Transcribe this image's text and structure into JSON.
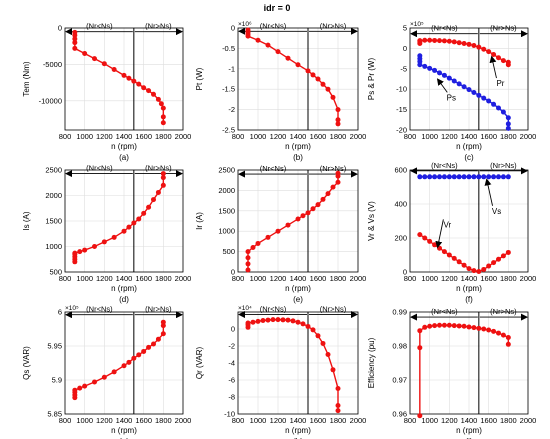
{
  "figure_title": "idr = 0",
  "region_labels": {
    "left": "(Nr<Ns)",
    "right": "(Nr>Ns)"
  },
  "colors": {
    "red": "#ee1111",
    "blue": "#1f1fe0",
    "axis": "#000000",
    "grid": "#dedede"
  },
  "chart_data": [
    {
      "type": "line",
      "panel": "(a)",
      "xlabel": "n (rpm)",
      "ylabel": "Tem (Nm)",
      "xlim": [
        800,
        2000
      ],
      "ylim": [
        -14000,
        0
      ],
      "xticks": [
        800,
        1000,
        1200,
        1400,
        1600,
        1800,
        2000
      ],
      "yticks": [
        0,
        -5000,
        -10000
      ],
      "exponent": "",
      "region_y": -500,
      "series": [
        {
          "color": "#ee1111",
          "x": [
            900,
            900,
            900,
            900,
            900,
            1000,
            1100,
            1200,
            1300,
            1400,
            1450,
            1500,
            1550,
            1600,
            1650,
            1700,
            1750,
            1780,
            1800,
            1800,
            1800
          ],
          "y": [
            -600,
            -1000,
            -1500,
            -2000,
            -2800,
            -3500,
            -4200,
            -4900,
            -5700,
            -6500,
            -6900,
            -7300,
            -7700,
            -8200,
            -8600,
            -9100,
            -9800,
            -10400,
            -11000,
            -12200,
            -13000
          ]
        }
      ],
      "annotations": []
    },
    {
      "type": "line",
      "panel": "(b)",
      "xlabel": "n (rpm)",
      "ylabel": "Pt (W)",
      "xlim": [
        800,
        2000
      ],
      "ylim": [
        -2.5,
        0
      ],
      "xticks": [
        800,
        1000,
        1200,
        1400,
        1600,
        1800,
        2000
      ],
      "yticks": [
        0,
        -0.5,
        -1,
        -1.5,
        -2,
        -2.5
      ],
      "exponent": "×10⁶",
      "region_y": -0.08,
      "series": [
        {
          "color": "#ee1111",
          "x": [
            900,
            900,
            900,
            900,
            1000,
            1100,
            1200,
            1300,
            1400,
            1500,
            1550,
            1600,
            1650,
            1700,
            1750,
            1800,
            1800,
            1800
          ],
          "y": [
            -0.05,
            -0.1,
            -0.15,
            -0.2,
            -0.3,
            -0.42,
            -0.58,
            -0.74,
            -0.9,
            -1.05,
            -1.15,
            -1.25,
            -1.38,
            -1.5,
            -1.7,
            -2.0,
            -2.25,
            -2.35
          ]
        }
      ],
      "annotations": []
    },
    {
      "type": "line",
      "panel": "(c)",
      "xlabel": "n (rpm)",
      "ylabel": "Ps & Pr (W)",
      "xlim": [
        800,
        2000
      ],
      "ylim": [
        -20,
        5
      ],
      "xticks": [
        800,
        1000,
        1200,
        1400,
        1600,
        1800,
        2000
      ],
      "yticks": [
        5,
        0,
        -5,
        -10,
        -15,
        -20
      ],
      "exponent": "×10⁵",
      "region_y": 3.6,
      "series": [
        {
          "name": "Pr",
          "color": "#ee1111",
          "x": [
            900,
            900,
            900,
            950,
            1000,
            1050,
            1100,
            1150,
            1200,
            1250,
            1300,
            1350,
            1400,
            1450,
            1500,
            1550,
            1600,
            1650,
            1700,
            1750,
            1800,
            1800
          ],
          "y": [
            1.2,
            1.6,
            1.9,
            2.0,
            2.0,
            1.95,
            1.9,
            1.85,
            1.75,
            1.6,
            1.4,
            1.2,
            1.0,
            0.7,
            0.3,
            -0.2,
            -0.8,
            -1.5,
            -2.3,
            -3.0,
            -3.4,
            -4.0
          ]
        },
        {
          "name": "Ps",
          "color": "#1f1fe0",
          "x": [
            900,
            900,
            900,
            900,
            950,
            1000,
            1050,
            1100,
            1150,
            1200,
            1250,
            1300,
            1350,
            1400,
            1450,
            1500,
            1550,
            1600,
            1650,
            1700,
            1750,
            1800,
            1800,
            1800
          ],
          "y": [
            -1.8,
            -2.5,
            -3.2,
            -4.0,
            -4.4,
            -4.9,
            -5.4,
            -6.0,
            -6.6,
            -7.3,
            -8.0,
            -8.7,
            -9.4,
            -10.1,
            -10.8,
            -11.5,
            -12.2,
            -12.9,
            -13.7,
            -14.6,
            -15.6,
            -17.0,
            -18.5,
            -19.6
          ]
        }
      ],
      "annotations": [
        {
          "text": "Ps",
          "tx": 1220,
          "ty": -12,
          "ax": 1080,
          "ay": -7.5
        },
        {
          "text": "Pr",
          "tx": 1720,
          "ty": -8.5,
          "ax": 1630,
          "ay": -2.0
        }
      ]
    },
    {
      "type": "line",
      "panel": "(d)",
      "xlabel": "n (rpm)",
      "ylabel": "Is (A)",
      "xlim": [
        800,
        2000
      ],
      "ylim": [
        500,
        2500
      ],
      "xticks": [
        800,
        1000,
        1200,
        1400,
        1600,
        1800,
        2000
      ],
      "yticks": [
        500,
        1000,
        1500,
        2000,
        2500
      ],
      "exponent": "",
      "region_y": 2430,
      "series": [
        {
          "color": "#ee1111",
          "x": [
            900,
            900,
            900,
            900,
            900,
            950,
            1000,
            1100,
            1200,
            1300,
            1400,
            1450,
            1500,
            1550,
            1600,
            1650,
            1700,
            1750,
            1800,
            1800,
            1800
          ],
          "y": [
            700,
            750,
            800,
            850,
            870,
            900,
            930,
            1000,
            1090,
            1180,
            1300,
            1380,
            1460,
            1540,
            1650,
            1770,
            1920,
            2060,
            2200,
            2350,
            2430
          ]
        }
      ],
      "annotations": []
    },
    {
      "type": "line",
      "panel": "(e)",
      "xlabel": "n (rpm)",
      "ylabel": "Ir (A)",
      "xlim": [
        800,
        2000
      ],
      "ylim": [
        0,
        2500
      ],
      "xticks": [
        800,
        1000,
        1200,
        1400,
        1600,
        1800,
        2000
      ],
      "yticks": [
        0,
        500,
        1000,
        1500,
        2000,
        2500
      ],
      "exponent": "",
      "region_y": 2400,
      "series": [
        {
          "color": "#ee1111",
          "x": [
            900,
            900,
            900,
            900,
            950,
            1000,
            1100,
            1200,
            1300,
            1400,
            1450,
            1500,
            1550,
            1600,
            1650,
            1700,
            1750,
            1800,
            1800,
            1800
          ],
          "y": [
            50,
            200,
            350,
            500,
            600,
            700,
            850,
            1000,
            1150,
            1300,
            1380,
            1450,
            1550,
            1650,
            1780,
            1920,
            2080,
            2200,
            2350,
            2420
          ]
        }
      ],
      "annotations": []
    },
    {
      "type": "line",
      "panel": "(f)",
      "xlabel": "n (rpm)",
      "ylabel": "Vr & Vs (V)",
      "xlim": [
        800,
        2000
      ],
      "ylim": [
        0,
        600
      ],
      "xticks": [
        800,
        1000,
        1200,
        1400,
        1600,
        1800,
        2000
      ],
      "yticks": [
        0,
        200,
        400,
        600
      ],
      "exponent": "",
      "region_y": 595,
      "series": [
        {
          "name": "Vs",
          "color": "#1f1fe0",
          "x": [
            900,
            950,
            1000,
            1050,
            1100,
            1150,
            1200,
            1250,
            1300,
            1350,
            1400,
            1450,
            1500,
            1550,
            1600,
            1650,
            1700,
            1750,
            1800
          ],
          "y": [
            560,
            560,
            560,
            560,
            560,
            560,
            560,
            560,
            560,
            560,
            560,
            560,
            560,
            560,
            560,
            560,
            560,
            560,
            560
          ]
        },
        {
          "name": "Vr",
          "color": "#ee1111",
          "x": [
            900,
            950,
            1000,
            1050,
            1100,
            1150,
            1200,
            1250,
            1300,
            1350,
            1400,
            1450,
            1500,
            1550,
            1600,
            1650,
            1700,
            1750,
            1800
          ],
          "y": [
            220,
            200,
            180,
            160,
            140,
            120,
            100,
            80,
            60,
            40,
            20,
            8,
            3,
            15,
            35,
            55,
            75,
            95,
            115
          ]
        }
      ],
      "annotations": [
        {
          "text": "Vr",
          "tx": 1180,
          "ty": 280,
          "ax": 1080,
          "ay": 145
        },
        {
          "text": "Vs",
          "tx": 1680,
          "ty": 360,
          "ax": 1580,
          "ay": 545
        }
      ]
    },
    {
      "type": "line",
      "panel": "(g)",
      "xlabel": "n (rpm)",
      "ylabel": "Qs (VAR)",
      "xlim": [
        800,
        2000
      ],
      "ylim": [
        5.85,
        6.0
      ],
      "xticks": [
        800,
        1000,
        1200,
        1400,
        1600,
        1800,
        2000
      ],
      "yticks": [
        5.85,
        5.9,
        5.95,
        6.0
      ],
      "tick_labels_y": [
        "5.85",
        "5.9",
        "5.95",
        "6"
      ],
      "exponent": "×10⁵",
      "region_y": 5.996,
      "series": [
        {
          "color": "#ee1111",
          "x": [
            900,
            900,
            900,
            900,
            950,
            1000,
            1100,
            1200,
            1300,
            1400,
            1450,
            1500,
            1550,
            1600,
            1650,
            1700,
            1750,
            1800,
            1800,
            1800
          ],
          "y": [
            5.874,
            5.878,
            5.882,
            5.885,
            5.888,
            5.891,
            5.897,
            5.904,
            5.912,
            5.921,
            5.926,
            5.932,
            5.937,
            5.942,
            5.948,
            5.953,
            5.96,
            5.968,
            5.98,
            5.985
          ]
        }
      ],
      "annotations": []
    },
    {
      "type": "line",
      "panel": "(h)",
      "xlabel": "n (rpm)",
      "ylabel": "Qr (VAR)",
      "xlim": [
        800,
        2000
      ],
      "ylim": [
        -10,
        2
      ],
      "xticks": [
        800,
        1000,
        1200,
        1400,
        1600,
        1800,
        2000
      ],
      "yticks": [
        0,
        -2,
        -4,
        -6,
        -8,
        -10
      ],
      "exponent": "×10⁴",
      "region_y": 1.7,
      "series": [
        {
          "color": "#ee1111",
          "x": [
            900,
            900,
            900,
            950,
            1000,
            1050,
            1100,
            1150,
            1200,
            1250,
            1300,
            1350,
            1400,
            1450,
            1500,
            1550,
            1600,
            1650,
            1700,
            1750,
            1800,
            1800,
            1800
          ],
          "y": [
            0.2,
            0.5,
            0.7,
            0.8,
            0.9,
            1.0,
            1.05,
            1.1,
            1.1,
            1.08,
            1.05,
            0.95,
            0.8,
            0.6,
            0.3,
            -0.1,
            -0.8,
            -1.7,
            -3.0,
            -4.8,
            -7.0,
            -9.0,
            -9.6
          ]
        }
      ],
      "annotations": []
    },
    {
      "type": "line",
      "panel": "(i)",
      "xlabel": "n (rpm)",
      "ylabel": "Efficiency (pu)",
      "xlim": [
        800,
        2000
      ],
      "ylim": [
        0.96,
        0.99
      ],
      "xticks": [
        800,
        1000,
        1200,
        1400,
        1600,
        1800,
        2000
      ],
      "yticks": [
        0.96,
        0.97,
        0.98,
        0.99
      ],
      "exponent": "",
      "region_y": 0.9885,
      "series": [
        {
          "color": "#ee1111",
          "x": [
            900,
            900,
            900,
            950,
            1000,
            1050,
            1100,
            1150,
            1200,
            1250,
            1300,
            1350,
            1400,
            1450,
            1500,
            1550,
            1600,
            1650,
            1700,
            1750,
            1800,
            1800
          ],
          "y": [
            0.9595,
            0.9795,
            0.9845,
            0.9855,
            0.9858,
            0.986,
            0.9861,
            0.9861,
            0.9861,
            0.986,
            0.9859,
            0.9858,
            0.9856,
            0.9854,
            0.9852,
            0.985,
            0.9847,
            0.9843,
            0.9838,
            0.9832,
            0.9825,
            0.9805
          ]
        }
      ],
      "annotations": []
    }
  ]
}
